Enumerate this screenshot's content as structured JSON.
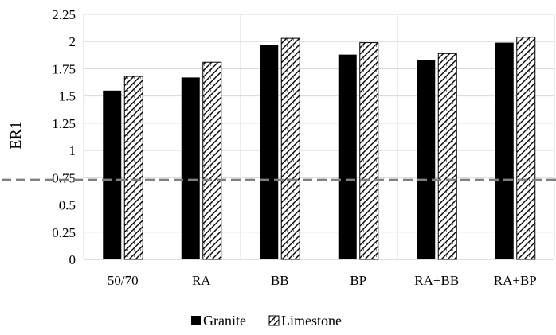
{
  "chart_data": {
    "type": "bar",
    "ylabel": "ER1",
    "xlabel": "",
    "categories": [
      "50/70",
      "RA",
      "BB",
      "BP",
      "RA+BB",
      "RA+BP"
    ],
    "series": [
      {
        "name": "Granite",
        "values": [
          1.55,
          1.67,
          1.97,
          1.88,
          1.83,
          1.99
        ],
        "color": "#000000",
        "pattern": "solid"
      },
      {
        "name": "Limestone",
        "values": [
          1.68,
          1.81,
          2.03,
          1.99,
          1.89,
          2.04
        ],
        "color": "#000000",
        "pattern": "zigzag-hatch"
      }
    ],
    "ylim": [
      0,
      2.25
    ],
    "yticks": [
      "0",
      "0.25",
      "0.5",
      "0.75",
      "1",
      "1.25",
      "1.5",
      "1.75",
      "2",
      "2.25"
    ],
    "reference_line": {
      "value": 0.73,
      "style": "dashed",
      "color": "#808080"
    },
    "grid": true,
    "legend_position": "bottom"
  }
}
